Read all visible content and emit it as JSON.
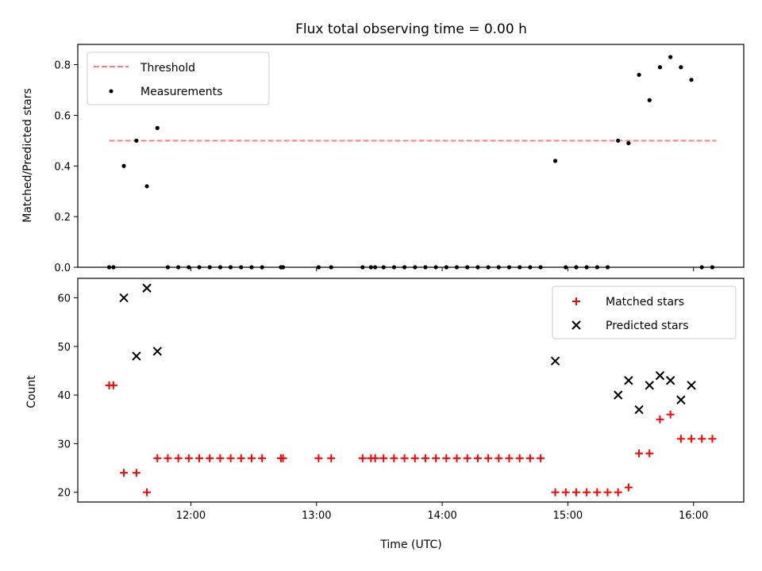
{
  "title": "Flux total observing time = 0.00 h",
  "colors": {
    "threshold": "#ff7f7f",
    "measurements": "#000000",
    "matched": "#ff0000",
    "predicted": "#000000"
  },
  "chart_data": [
    {
      "type": "scatter",
      "ylabel": "Matched/Predicted stars",
      "xlim": [
        "11:06",
        "16:24"
      ],
      "ylim": [
        0,
        0.88
      ],
      "yticks": [
        0.0,
        0.2,
        0.4,
        0.6,
        0.8
      ],
      "ytick_labels": [
        "0.0",
        "0.2",
        "0.4",
        "0.6",
        "0.8"
      ],
      "legend_position": "upper left",
      "threshold": {
        "name": "Threshold",
        "value": 0.5,
        "x_range": [
          "11:21",
          "16:11"
        ]
      },
      "series": [
        {
          "name": "Measurements",
          "points": [
            [
              "11:21",
              0
            ],
            [
              "11:23",
              0
            ],
            [
              "11:28",
              0.4
            ],
            [
              "11:34",
              0.5
            ],
            [
              "11:39",
              0.32
            ],
            [
              "11:44",
              0.55
            ],
            [
              "11:49",
              0
            ],
            [
              "11:54",
              0
            ],
            [
              "11:59",
              0
            ],
            [
              "12:04",
              0
            ],
            [
              "12:09",
              0
            ],
            [
              "12:14",
              0
            ],
            [
              "12:19",
              0
            ],
            [
              "12:24",
              0
            ],
            [
              "12:29",
              0
            ],
            [
              "12:34",
              0
            ],
            [
              "12:43",
              0
            ],
            [
              "12:44",
              0
            ],
            [
              "13:01",
              0
            ],
            [
              "13:07",
              0
            ],
            [
              "13:22",
              0
            ],
            [
              "13:26",
              0
            ],
            [
              "13:28",
              0
            ],
            [
              "13:32",
              0
            ],
            [
              "13:37",
              0
            ],
            [
              "13:42",
              0
            ],
            [
              "13:47",
              0
            ],
            [
              "13:52",
              0
            ],
            [
              "13:57",
              0
            ],
            [
              "14:02",
              0
            ],
            [
              "14:07",
              0
            ],
            [
              "14:12",
              0
            ],
            [
              "14:17",
              0
            ],
            [
              "14:22",
              0
            ],
            [
              "14:27",
              0
            ],
            [
              "14:32",
              0
            ],
            [
              "14:37",
              0
            ],
            [
              "14:42",
              0
            ],
            [
              "14:47",
              0
            ],
            [
              "14:54",
              0.42
            ],
            [
              "14:59",
              0
            ],
            [
              "15:04",
              0
            ],
            [
              "15:09",
              0
            ],
            [
              "15:14",
              0
            ],
            [
              "15:19",
              0
            ],
            [
              "15:24",
              0.5
            ],
            [
              "15:29",
              0.49
            ],
            [
              "15:34",
              0.76
            ],
            [
              "15:39",
              0.66
            ],
            [
              "15:44",
              0.79
            ],
            [
              "15:49",
              0.83
            ],
            [
              "15:54",
              0.79
            ],
            [
              "15:59",
              0.74
            ],
            [
              "16:04",
              0
            ],
            [
              "16:09",
              0
            ]
          ]
        }
      ]
    },
    {
      "type": "scatter",
      "xlabel": "Time (UTC)",
      "ylabel": "Count",
      "xlim": [
        "11:06",
        "16:24"
      ],
      "ylim": [
        18,
        64
      ],
      "xticks": [
        "12:00",
        "13:00",
        "14:00",
        "15:00",
        "16:00"
      ],
      "yticks": [
        20,
        30,
        40,
        50,
        60
      ],
      "ytick_labels": [
        "20",
        "30",
        "40",
        "50",
        "60"
      ],
      "legend_position": "upper right",
      "series": [
        {
          "name": "Matched stars",
          "marker": "+",
          "points": [
            [
              "11:21",
              42
            ],
            [
              "11:23",
              42
            ],
            [
              "11:28",
              24
            ],
            [
              "11:34",
              24
            ],
            [
              "11:39",
              20
            ],
            [
              "11:44",
              27
            ],
            [
              "11:49",
              27
            ],
            [
              "11:54",
              27
            ],
            [
              "11:59",
              27
            ],
            [
              "12:04",
              27
            ],
            [
              "12:09",
              27
            ],
            [
              "12:14",
              27
            ],
            [
              "12:19",
              27
            ],
            [
              "12:24",
              27
            ],
            [
              "12:29",
              27
            ],
            [
              "12:34",
              27
            ],
            [
              "12:43",
              27
            ],
            [
              "12:44",
              27
            ],
            [
              "13:01",
              27
            ],
            [
              "13:07",
              27
            ],
            [
              "13:22",
              27
            ],
            [
              "13:26",
              27
            ],
            [
              "13:28",
              27
            ],
            [
              "13:32",
              27
            ],
            [
              "13:37",
              27
            ],
            [
              "13:42",
              27
            ],
            [
              "13:47",
              27
            ],
            [
              "13:52",
              27
            ],
            [
              "13:57",
              27
            ],
            [
              "14:02",
              27
            ],
            [
              "14:07",
              27
            ],
            [
              "14:12",
              27
            ],
            [
              "14:17",
              27
            ],
            [
              "14:22",
              27
            ],
            [
              "14:27",
              27
            ],
            [
              "14:32",
              27
            ],
            [
              "14:37",
              27
            ],
            [
              "14:42",
              27
            ],
            [
              "14:47",
              27
            ],
            [
              "14:54",
              20
            ],
            [
              "14:59",
              20
            ],
            [
              "15:04",
              20
            ],
            [
              "15:09",
              20
            ],
            [
              "15:14",
              20
            ],
            [
              "15:19",
              20
            ],
            [
              "15:24",
              20
            ],
            [
              "15:29",
              21
            ],
            [
              "15:34",
              28
            ],
            [
              "15:39",
              28
            ],
            [
              "15:44",
              35
            ],
            [
              "15:49",
              36
            ],
            [
              "15:54",
              31
            ],
            [
              "15:59",
              31
            ],
            [
              "16:04",
              31
            ],
            [
              "16:09",
              31
            ]
          ]
        },
        {
          "name": "Predicted stars",
          "marker": "x",
          "points": [
            [
              "11:28",
              60
            ],
            [
              "11:34",
              48
            ],
            [
              "11:39",
              62
            ],
            [
              "11:44",
              49
            ],
            [
              "14:54",
              47
            ],
            [
              "15:24",
              40
            ],
            [
              "15:29",
              43
            ],
            [
              "15:34",
              37
            ],
            [
              "15:39",
              42
            ],
            [
              "15:44",
              44
            ],
            [
              "15:49",
              43
            ],
            [
              "15:54",
              39
            ],
            [
              "15:59",
              42
            ]
          ]
        }
      ]
    }
  ]
}
